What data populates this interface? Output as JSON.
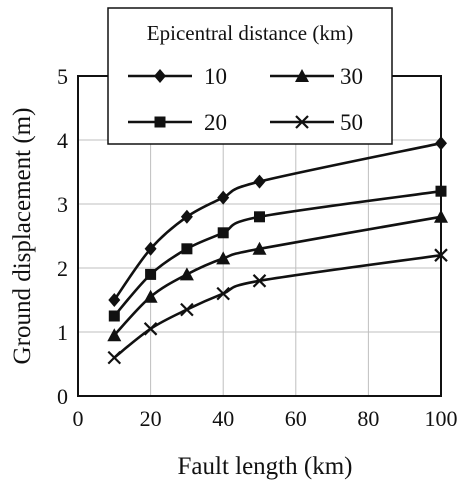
{
  "chart_data": {
    "type": "line",
    "title": "",
    "xlabel": "Fault length (km)",
    "ylabel": "Ground displacement (m)",
    "xlim": [
      0,
      100
    ],
    "ylim": [
      0,
      5
    ],
    "xticks": [
      "0",
      "20",
      "40",
      "60",
      "80",
      "100"
    ],
    "yticks": [
      "0",
      "1",
      "2",
      "3",
      "4",
      "5"
    ],
    "grid": true,
    "legend_title": "Epicentral distance (km)",
    "legend_position": "top-center",
    "series": [
      {
        "name": "10",
        "marker": "diamond",
        "x": [
          10,
          20,
          30,
          40,
          50,
          100
        ],
        "y": [
          1.5,
          2.3,
          2.8,
          3.1,
          3.35,
          3.95
        ]
      },
      {
        "name": "20",
        "marker": "square",
        "x": [
          10,
          20,
          30,
          40,
          50,
          100
        ],
        "y": [
          1.25,
          1.9,
          2.3,
          2.55,
          2.8,
          3.2
        ]
      },
      {
        "name": "30",
        "marker": "triangle",
        "x": [
          10,
          20,
          30,
          40,
          50,
          100
        ],
        "y": [
          0.95,
          1.55,
          1.9,
          2.15,
          2.3,
          2.8
        ]
      },
      {
        "name": "50",
        "marker": "x",
        "x": [
          10,
          20,
          30,
          40,
          50,
          100
        ],
        "y": [
          0.6,
          1.05,
          1.35,
          1.6,
          1.8,
          2.2
        ]
      }
    ],
    "colors": {
      "line": "#111111",
      "grid": "#bfbfbf",
      "frame": "#111111"
    }
  }
}
